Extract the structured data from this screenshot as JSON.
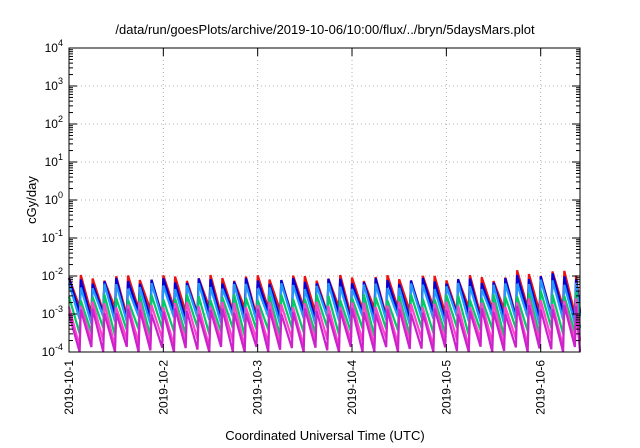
{
  "chart_data": {
    "type": "line",
    "title": "/data/run/goesPlots/archive/2019-10-06/10:00/flux/../bryn/5daysMars.plot",
    "xlabel": "Coordinated Universal Time (UTC)",
    "ylabel": "cGy/day",
    "yscale": "log",
    "ylim": [
      0.0001,
      10000
    ],
    "xlim": [
      "2019-10-01T00:00",
      "2019-10-06T10:00"
    ],
    "grid": true,
    "y_ticks": [
      {
        "base": "10",
        "exp": "-4",
        "value": 0.0001
      },
      {
        "base": "10",
        "exp": "-3",
        "value": 0.001
      },
      {
        "base": "10",
        "exp": "-2",
        "value": 0.01
      },
      {
        "base": "10",
        "exp": "-1",
        "value": 0.1
      },
      {
        "base": "10",
        "exp": "0",
        "value": 1
      },
      {
        "base": "10",
        "exp": "1",
        "value": 10
      },
      {
        "base": "10",
        "exp": "2",
        "value": 100
      },
      {
        "base": "10",
        "exp": "3",
        "value": 1000
      },
      {
        "base": "10",
        "exp": "4",
        "value": 10000
      }
    ],
    "x_ticks": [
      {
        "label": "2019-10-1",
        "value": "2019-10-01T00:00"
      },
      {
        "label": "2019-10-2",
        "value": "2019-10-02T00:00"
      },
      {
        "label": "2019-10-3",
        "value": "2019-10-03T00:00"
      },
      {
        "label": "2019-10-4",
        "value": "2019-10-04T00:00"
      },
      {
        "label": "2019-10-5",
        "value": "2019-10-05T00:00"
      },
      {
        "label": "2019-10-6",
        "value": "2019-10-06T00:00"
      }
    ],
    "sawtooth_period_hours": 3,
    "series": [
      {
        "color": "#ee1111",
        "peak": 0.009,
        "trough": 0.0012,
        "late_peak": 0.012
      },
      {
        "color": "#0000dd",
        "peak": 0.0075,
        "trough": 0.0009,
        "late_peak": 0.01
      },
      {
        "color": "#2299ff",
        "peak": 0.0055,
        "trough": 0.0007,
        "late_peak": 0.007
      },
      {
        "color": "#00cc66",
        "peak": 0.0028,
        "trough": 0.00035,
        "late_peak": 0.0035
      },
      {
        "color": "#ff44cc",
        "peak": 0.0018,
        "trough": 0.00018,
        "late_peak": 0.0022
      },
      {
        "color": "#cc22cc",
        "peak": 0.0012,
        "trough": 0.00011,
        "late_peak": 0.0015
      }
    ]
  }
}
